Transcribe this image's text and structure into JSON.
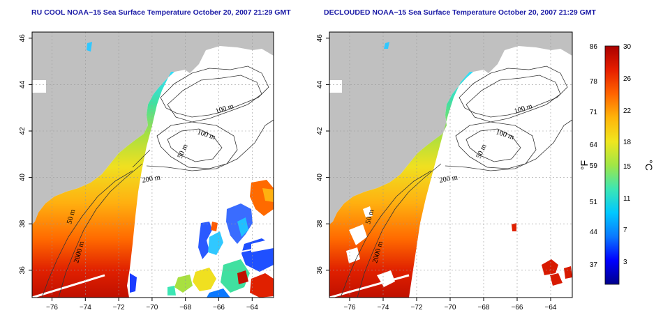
{
  "panels": [
    {
      "id": "left",
      "title": "RU COOL NOAA−15 Sea Surface Temperature October 20, 2007 21:29 GMT",
      "contour_labels": [
        "100 m",
        "100 m",
        "50 m",
        "200 m",
        "50 m",
        "2000 m"
      ]
    },
    {
      "id": "right",
      "title": "DECLOUDED NOAA−15 Sea Surface Temperature October 20, 2007 21:29 GMT",
      "contour_labels": [
        "100 m",
        "100 m",
        "50 m",
        "200 m",
        "50 m",
        "2000 m"
      ]
    }
  ],
  "axes": {
    "lon_ticks": [
      "−76",
      "−74",
      "−72",
      "−70",
      "−68",
      "−66",
      "−64"
    ],
    "lat_ticks": [
      "36",
      "38",
      "40",
      "42",
      "44",
      "46"
    ]
  },
  "colorbar": {
    "fahrenheit_ticks": [
      "86",
      "78",
      "71",
      "64",
      "59",
      "51",
      "44",
      "37"
    ],
    "celsius_ticks": [
      "30",
      "26",
      "22",
      "18",
      "15",
      "11",
      "7",
      "3"
    ],
    "unit_f": "°F",
    "unit_c": "°C",
    "colors": [
      "#00008b",
      "#0000ff",
      "#0a78ff",
      "#00c8ff",
      "#3ce6b4",
      "#a0e646",
      "#f0e61e",
      "#ffb40a",
      "#ff6400",
      "#e61e00",
      "#aa0000"
    ]
  },
  "colors": {
    "land": "#c0c0c0",
    "title": "#1a1aa6"
  }
}
